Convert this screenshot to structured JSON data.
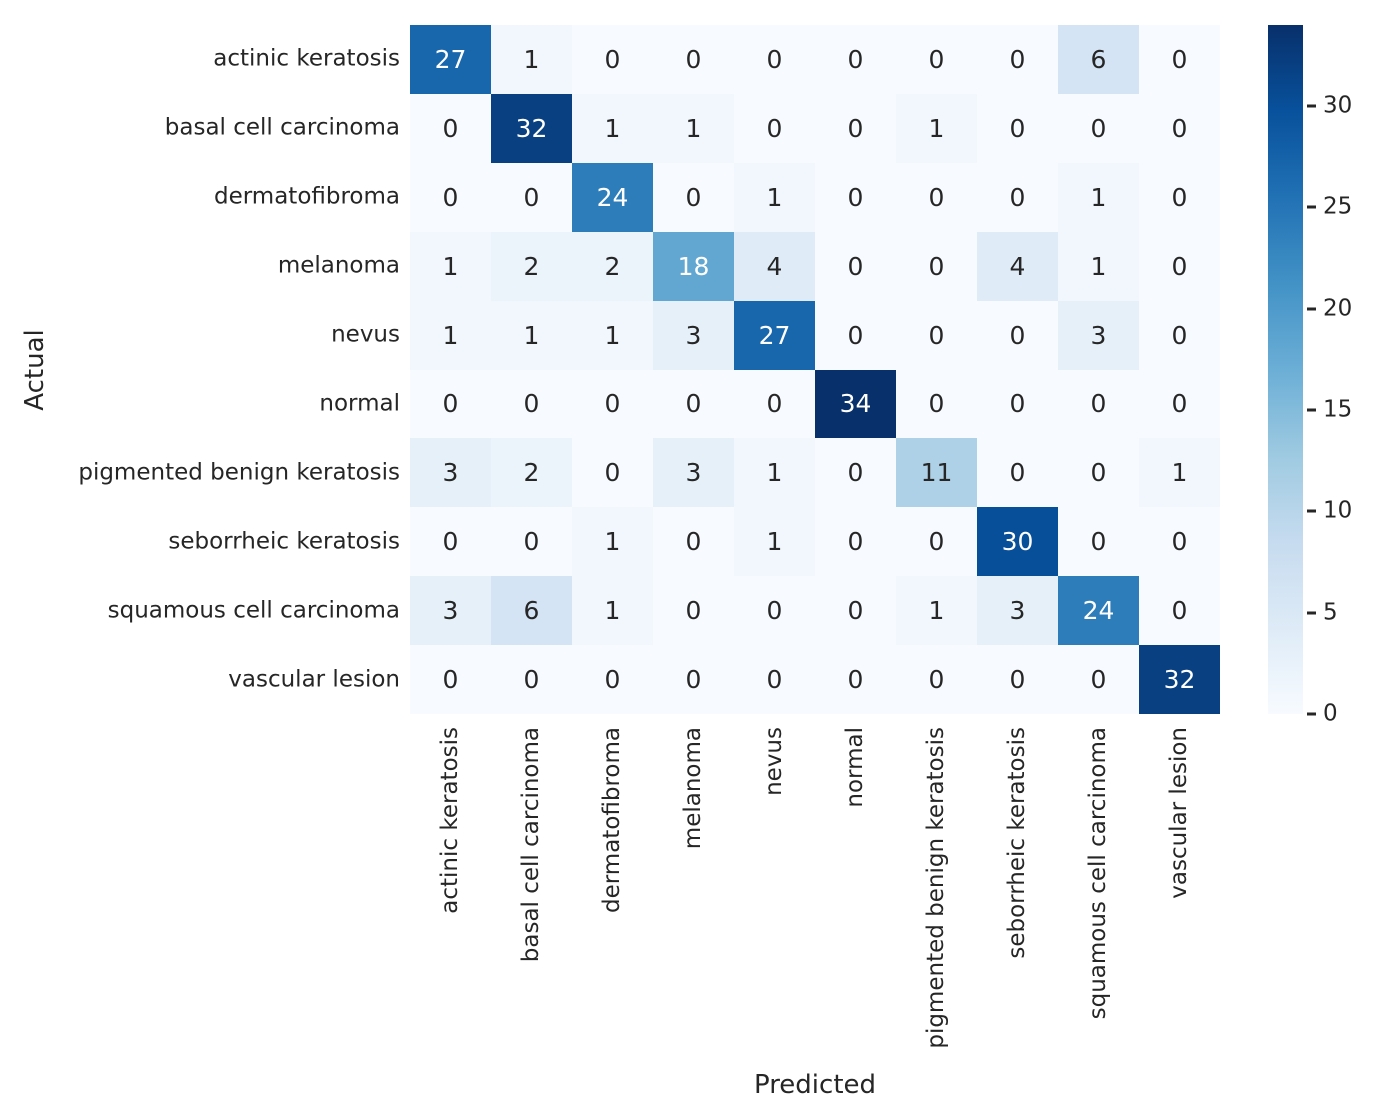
{
  "chart_data": {
    "type": "heatmap",
    "title": "",
    "xlabel": "Predicted",
    "ylabel": "Actual",
    "categories": [
      "actinic keratosis",
      "basal cell carcinoma",
      "dermatofibroma",
      "melanoma",
      "nevus",
      "normal",
      "pigmented benign keratosis",
      "seborrheic keratosis",
      "squamous cell carcinoma",
      "vascular lesion"
    ],
    "matrix": [
      [
        27,
        1,
        0,
        0,
        0,
        0,
        0,
        0,
        6,
        0
      ],
      [
        0,
        32,
        1,
        1,
        0,
        0,
        1,
        0,
        0,
        0
      ],
      [
        0,
        0,
        24,
        0,
        1,
        0,
        0,
        0,
        1,
        0
      ],
      [
        1,
        2,
        2,
        18,
        4,
        0,
        0,
        4,
        1,
        0
      ],
      [
        1,
        1,
        1,
        3,
        27,
        0,
        0,
        0,
        3,
        0
      ],
      [
        0,
        0,
        0,
        0,
        0,
        34,
        0,
        0,
        0,
        0
      ],
      [
        3,
        2,
        0,
        3,
        1,
        0,
        11,
        0,
        0,
        1
      ],
      [
        0,
        0,
        1,
        0,
        1,
        0,
        0,
        30,
        0,
        0
      ],
      [
        3,
        6,
        1,
        0,
        0,
        0,
        1,
        3,
        24,
        0
      ],
      [
        0,
        0,
        0,
        0,
        0,
        0,
        0,
        0,
        0,
        32
      ]
    ],
    "vmin": 0,
    "vmax": 34,
    "colormap": "Blues",
    "colormap_stops": [
      [
        0.0,
        "#f7fbff"
      ],
      [
        0.125,
        "#deebf7"
      ],
      [
        0.25,
        "#c6dbef"
      ],
      [
        0.375,
        "#9ecae1"
      ],
      [
        0.5,
        "#6baed6"
      ],
      [
        0.625,
        "#4292c6"
      ],
      [
        0.75,
        "#2171b5"
      ],
      [
        0.875,
        "#08519c"
      ],
      [
        1.0,
        "#08306b"
      ]
    ],
    "annotation_color_dark": "#262626",
    "annotation_color_light": "#ffffff",
    "colorbar_ticks": [
      0,
      5,
      10,
      15,
      20,
      25,
      30
    ],
    "legend_position": "right",
    "grid": false
  }
}
